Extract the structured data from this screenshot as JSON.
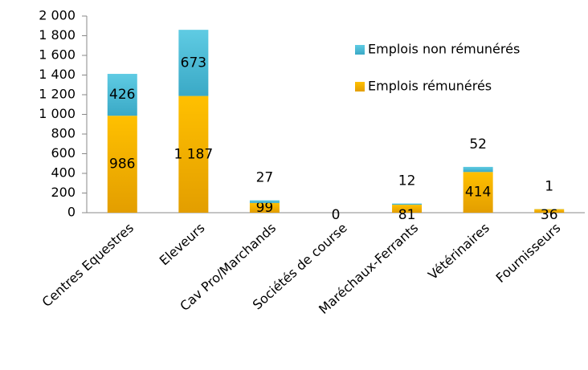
{
  "chart_data": {
    "type": "stacked_bar",
    "categories": [
      "Centres Equestres",
      "Eleveurs",
      "Cav Pro/Marchands",
      "Sociétés de course",
      "Maréchaux-Ferrants",
      "Vétérinaires",
      "Fournisseurs"
    ],
    "series": [
      {
        "name": "Emplois rémunérés",
        "color": "#f0ac00",
        "values": [
          986,
          1187,
          99,
          0,
          81,
          414,
          36
        ],
        "value_labels": [
          "986",
          "1 187",
          "99",
          "0",
          "81",
          "414",
          "36"
        ]
      },
      {
        "name": "Emplois non rémunérés",
        "color": "#46bcd8",
        "values": [
          426,
          673,
          27,
          null,
          12,
          52,
          1
        ],
        "value_labels": [
          "426",
          "673",
          "27",
          null,
          "12",
          "52",
          "1"
        ]
      }
    ],
    "ylim": [
      0,
      2000
    ],
    "yticks": [
      0,
      200,
      400,
      600,
      800,
      {
        "value": 1000,
        "label": "1 000"
      },
      {
        "value": 1200,
        "label": "1 200"
      },
      {
        "value": 1400,
        "label": "1 400"
      },
      {
        "value": 1600,
        "label": "1 600"
      },
      {
        "value": 1800,
        "label": "1 800"
      },
      {
        "value": 2000,
        "label": "2 000"
      }
    ],
    "legend": "upper right"
  }
}
